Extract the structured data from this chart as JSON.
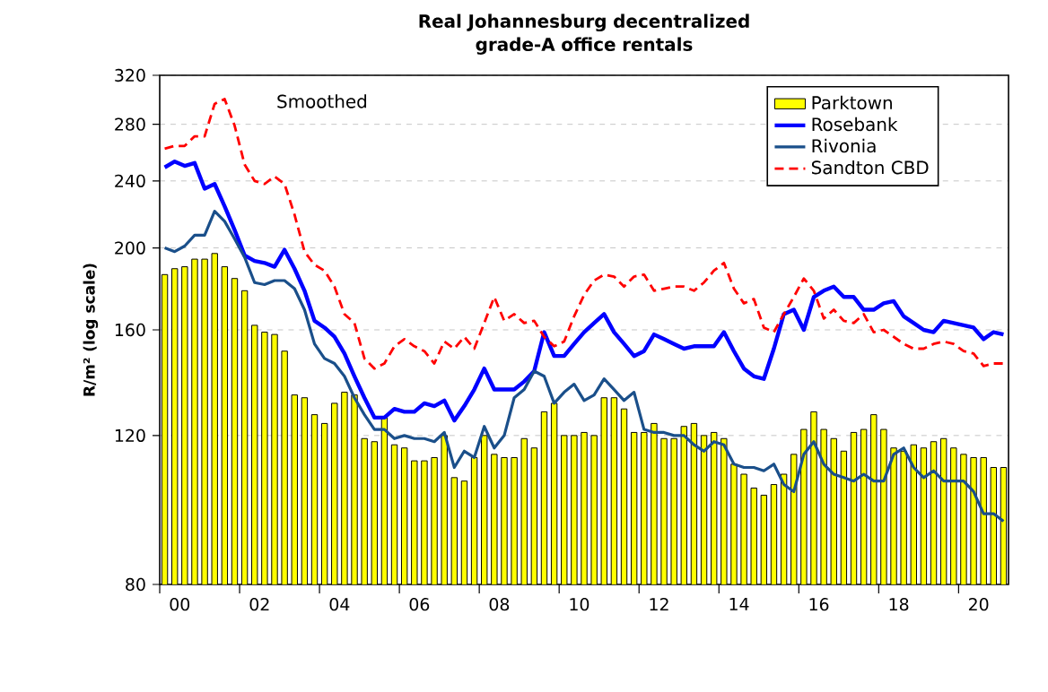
{
  "chart_data": {
    "type": "bar",
    "title": "Real Johannesburg decentralized grade-A office rentals",
    "ylabel": "R/m² (log scale)",
    "annotations": [
      "Smoothed"
    ],
    "log": "y",
    "grid": "y",
    "legend": "top right",
    "ylim": [
      80,
      320
    ],
    "yticks": [
      80,
      120,
      160,
      200,
      240,
      280,
      320
    ],
    "xlim": [
      -0.5,
      20.75
    ],
    "xticks": [
      {
        "value": 0,
        "label": "00"
      },
      {
        "value": 2,
        "label": "02"
      },
      {
        "value": 4,
        "label": "04"
      },
      {
        "value": 6,
        "label": "06"
      },
      {
        "value": 8,
        "label": "08"
      },
      {
        "value": 10,
        "label": "10"
      },
      {
        "value": 12,
        "label": "12"
      },
      {
        "value": 14,
        "label": "14"
      },
      {
        "value": 16,
        "label": "16"
      },
      {
        "value": 18,
        "label": "18"
      },
      {
        "value": 20,
        "label": "20"
      },
      {
        "value": -0.5,
        "label": null
      },
      {
        "value": 1.5,
        "label": null
      },
      {
        "value": 3.5,
        "label": null
      },
      {
        "value": 5.5,
        "label": null
      },
      {
        "value": 7.5,
        "label": null
      },
      {
        "value": 9.5,
        "label": null
      },
      {
        "value": 11.5,
        "label": null
      },
      {
        "value": 13.5,
        "label": null
      },
      {
        "value": 15.5,
        "label": null
      },
      {
        "value": 17.5,
        "label": null
      },
      {
        "value": 19.5,
        "label": null
      }
    ],
    "x": [
      -0.375,
      -0.125,
      0.125,
      0.375,
      0.625,
      0.875,
      1.125,
      1.375,
      1.625,
      1.875,
      2.125,
      2.375,
      2.625,
      2.875,
      3.125,
      3.375,
      3.625,
      3.875,
      4.125,
      4.375,
      4.625,
      4.875,
      5.125,
      5.375,
      5.625,
      5.875,
      6.125,
      6.375,
      6.625,
      6.875,
      7.125,
      7.375,
      7.625,
      7.875,
      8.125,
      8.375,
      8.625,
      8.875,
      9.125,
      9.375,
      9.625,
      9.875,
      10.125,
      10.375,
      10.625,
      10.875,
      11.125,
      11.375,
      11.625,
      11.875,
      12.125,
      12.375,
      12.625,
      12.875,
      13.125,
      13.375,
      13.625,
      13.875,
      14.125,
      14.375,
      14.625,
      14.875,
      15.125,
      15.375,
      15.625,
      15.875,
      16.125,
      16.375,
      16.625,
      16.875,
      17.125,
      17.375,
      17.625,
      17.875,
      18.125,
      18.375,
      18.625,
      18.875,
      19.125,
      19.375,
      19.625,
      19.875,
      20.125,
      20.375,
      20.625
    ],
    "series": [
      {
        "name": "Parktown",
        "color": "#ffff00",
        "values": [
          186,
          189,
          190,
          194,
          194,
          197,
          190,
          184,
          178,
          162,
          159,
          158,
          151,
          134,
          133,
          127,
          124,
          131,
          135,
          134,
          119,
          118,
          126,
          117,
          116,
          112,
          112,
          113,
          120,
          107,
          106,
          113,
          120,
          114,
          113,
          113,
          119,
          116,
          128,
          131,
          120,
          120,
          121,
          120,
          133,
          133,
          129,
          121,
          121,
          124,
          119,
          119,
          123,
          124,
          120,
          121,
          119,
          111,
          108,
          104,
          102,
          105,
          108,
          114,
          122,
          128,
          122,
          119,
          115,
          121,
          122,
          127,
          122,
          116,
          115,
          117,
          116,
          118,
          119,
          116,
          114,
          113,
          113,
          110,
          110
        ]
      },
      {
        "name": "Rosebank",
        "type": "line",
        "color": "#0000ff",
        "values": [
          249,
          253,
          250,
          252,
          235,
          238,
          224,
          210,
          196,
          193,
          192,
          190,
          199,
          189,
          178,
          164,
          161,
          157,
          150,
          141,
          133,
          126,
          126,
          129,
          128,
          128,
          131,
          130,
          132,
          125,
          130,
          136,
          144,
          136,
          136,
          136,
          139,
          143,
          159,
          149,
          149,
          154,
          159,
          163,
          167,
          159,
          154,
          149,
          151,
          158,
          156,
          154,
          152,
          153,
          153,
          153,
          159,
          151,
          144,
          141,
          140,
          152,
          167,
          169,
          160,
          175,
          178,
          180,
          175,
          175,
          169,
          169,
          172,
          173,
          166,
          163,
          160,
          159,
          164,
          163,
          162,
          161,
          156,
          159,
          158
        ]
      },
      {
        "name": "Rivonia",
        "type": "line",
        "color": "#1a4f8a",
        "values": [
          200,
          198,
          201,
          207,
          207,
          221,
          215,
          205,
          195,
          182,
          181,
          183,
          183,
          179,
          169,
          154,
          148,
          146,
          141,
          133,
          127,
          122,
          122,
          119,
          120,
          119,
          119,
          118,
          121,
          110,
          115,
          113,
          123,
          116,
          120,
          133,
          136,
          143,
          141,
          131,
          135,
          138,
          132,
          134,
          140,
          136,
          132,
          135,
          122,
          121,
          121,
          120,
          120,
          117,
          115,
          118,
          117,
          111,
          110,
          110,
          109,
          111,
          105,
          103,
          114,
          118,
          111,
          108,
          107,
          106,
          108,
          106,
          106,
          114,
          116,
          110,
          107,
          109,
          106,
          106,
          106,
          103,
          97,
          97,
          95
        ]
      },
      {
        "name": "Sandton CBD",
        "type": "line",
        "color": "#ff0000",
        "line_style": "dashed",
        "values": [
          262,
          264,
          264,
          271,
          271,
          296,
          300,
          279,
          251,
          240,
          238,
          243,
          238,
          219,
          198,
          191,
          188,
          180,
          167,
          163,
          148,
          144,
          146,
          153,
          156,
          153,
          151,
          146,
          155,
          152,
          157,
          152,
          163,
          175,
          164,
          167,
          163,
          164,
          157,
          153,
          155,
          166,
          176,
          183,
          186,
          185,
          180,
          185,
          186,
          178,
          179,
          180,
          180,
          178,
          182,
          188,
          192,
          179,
          172,
          174,
          161,
          159,
          167,
          175,
          184,
          178,
          165,
          169,
          164,
          163,
          167,
          159,
          160,
          157,
          154,
          152,
          152,
          154,
          155,
          154,
          151,
          150,
          145,
          146,
          146
        ]
      }
    ]
  }
}
